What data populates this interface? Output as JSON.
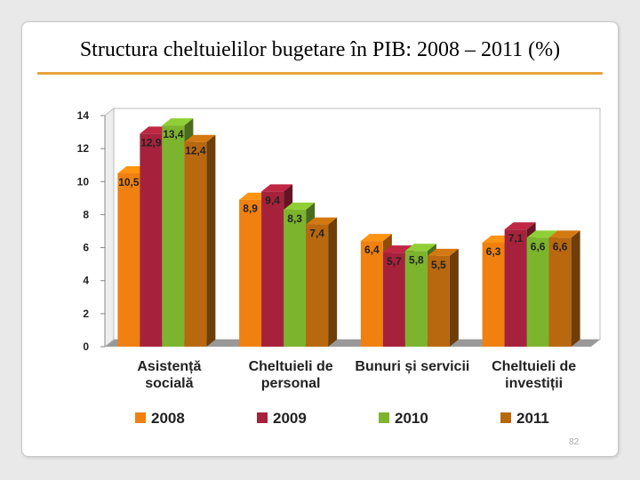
{
  "page_number": "82",
  "chart_data": {
    "type": "bar3d",
    "title": "Structura cheltuielilor bugetare în PIB: 2008 – 2011 (%)",
    "categories": [
      "Asistență socială",
      "Cheltuieli de personal",
      "Bunuri și servicii",
      "Cheltuieli de investiții"
    ],
    "series": [
      {
        "name": "2008",
        "color": "#f08010",
        "values": [
          10.5,
          8.9,
          6.4,
          6.3
        ],
        "value_labels": [
          "10,5",
          "8,9",
          "6,4",
          "6,3"
        ]
      },
      {
        "name": "2009",
        "color": "#a6223c",
        "values": [
          12.9,
          9.4,
          5.7,
          7.1
        ],
        "value_labels": [
          "12,9",
          "9,4",
          "5,7",
          "7,1"
        ]
      },
      {
        "name": "2010",
        "color": "#7cb42e",
        "values": [
          13.4,
          8.3,
          5.8,
          6.6
        ],
        "value_labels": [
          "13,4",
          "8,3",
          "5,8",
          "6,6"
        ]
      },
      {
        "name": "2011",
        "color": "#b8680f",
        "values": [
          12.4,
          7.4,
          5.5,
          6.6
        ],
        "value_labels": [
          "12,4",
          "7,4",
          "5,5",
          "6,6"
        ]
      }
    ],
    "ylim": [
      0,
      14
    ],
    "yticks": [
      0,
      2,
      4,
      6,
      8,
      10,
      12,
      14
    ],
    "legend": "bottom"
  }
}
